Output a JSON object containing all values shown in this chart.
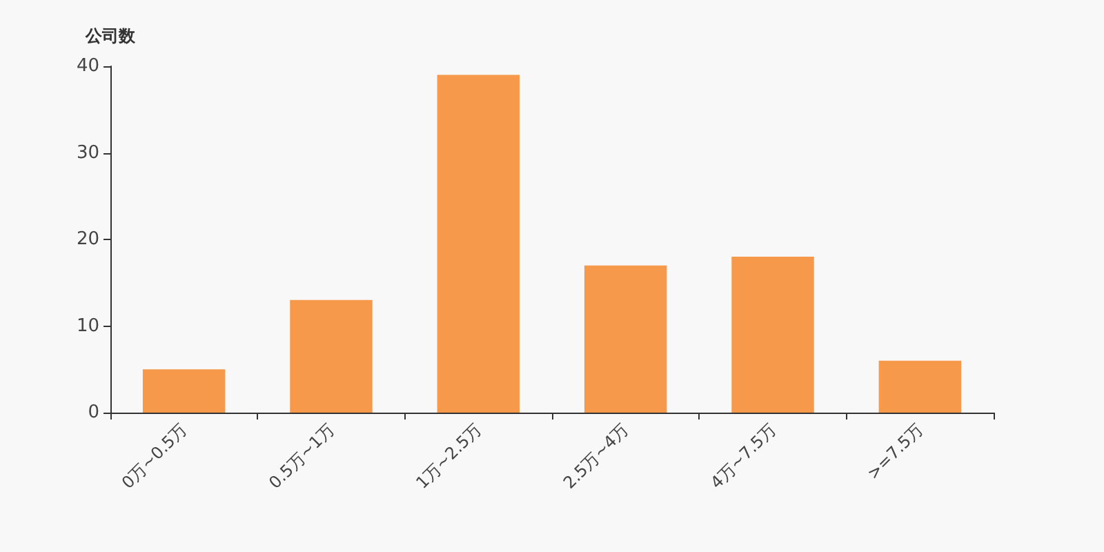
{
  "chart_data": {
    "type": "bar",
    "ylabel": "公司数",
    "categories": [
      "0万~0.5万",
      "0.5万~1万",
      "1万~2.5万",
      "2.5万~4万",
      "4万~7.5万",
      ">=7.5万"
    ],
    "values": [
      5,
      13,
      39,
      17,
      18,
      6
    ],
    "color": "#f7994a",
    "ylim": [
      0,
      40
    ],
    "yticks": [
      0,
      10,
      20,
      30,
      40
    ],
    "grid": false
  }
}
